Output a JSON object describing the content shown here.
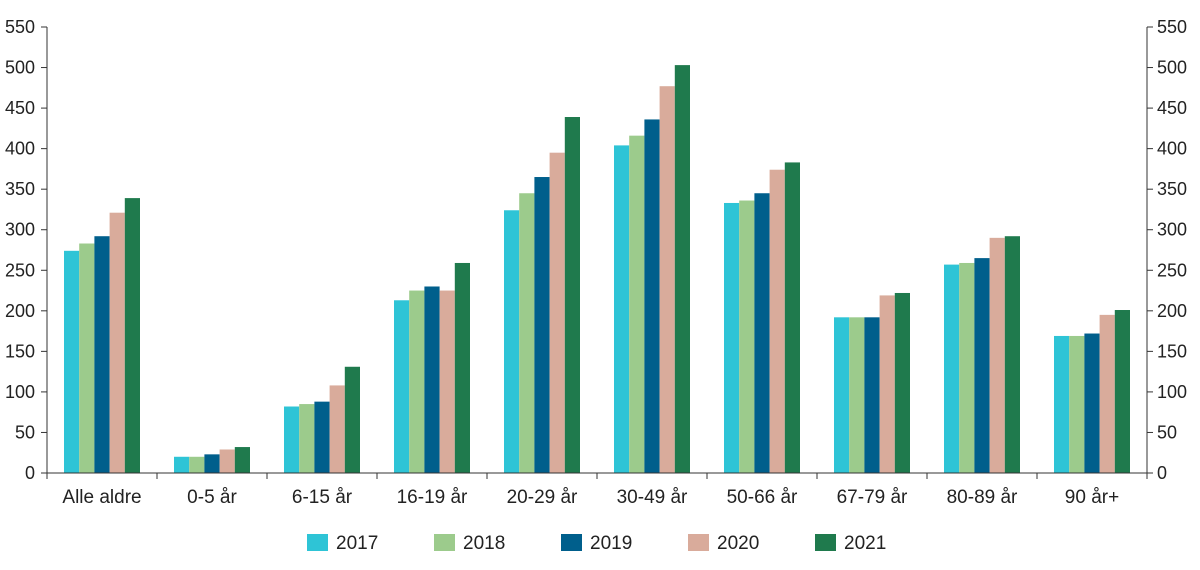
{
  "chart_data": {
    "type": "bar",
    "categories": [
      "Alle aldre",
      "0-5 år",
      "6-15 år",
      "16-19 år",
      "20-29 år",
      "30-49 år",
      "50-66 år",
      "67-79 år",
      "80-89 år",
      "90 år+"
    ],
    "series": [
      {
        "name": "2017",
        "color": "#2ec4d6",
        "values": [
          274,
          20,
          82,
          213,
          324,
          404,
          333,
          192,
          257,
          169
        ]
      },
      {
        "name": "2018",
        "color": "#9ccb8c",
        "values": [
          283,
          20,
          85,
          225,
          345,
          416,
          336,
          192,
          259,
          169
        ]
      },
      {
        "name": "2019",
        "color": "#005f8c",
        "values": [
          292,
          23,
          88,
          230,
          365,
          436,
          345,
          192,
          265,
          172
        ]
      },
      {
        "name": "2020",
        "color": "#d9ab9b",
        "values": [
          321,
          29,
          108,
          225,
          395,
          477,
          374,
          219,
          290,
          195
        ]
      },
      {
        "name": "2021",
        "color": "#1f7a4d",
        "values": [
          339,
          32,
          131,
          259,
          439,
          503,
          383,
          222,
          292,
          201
        ]
      }
    ],
    "yticks": [
      "0",
      "50",
      "100",
      "150",
      "200",
      "250",
      "300",
      "350",
      "400",
      "450",
      "500",
      "550"
    ],
    "ylim": [
      0,
      550
    ],
    "grid": false,
    "legend_position": "bottom",
    "title": "",
    "xlabel": "",
    "ylabel": ""
  }
}
